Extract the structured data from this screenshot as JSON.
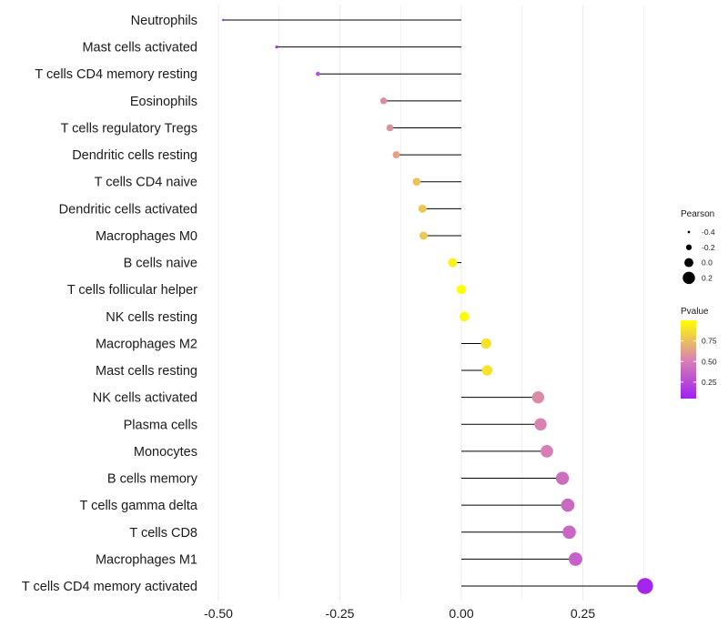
{
  "chart_data": {
    "type": "lollipop",
    "xlabel": "",
    "ylabel": "",
    "xlim": [
      -0.52,
      0.42
    ],
    "x_ticks": [
      -0.5,
      -0.25,
      0.0,
      0.25
    ],
    "x_tick_labels": [
      "-0.50",
      "-0.25",
      "0.00",
      "0.25"
    ],
    "categories": [
      "Neutrophils",
      "Mast cells activated",
      "T cells CD4 memory resting",
      "Eosinophils",
      "T cells regulatory  Tregs ",
      "Dendritic cells resting",
      "T cells CD4 naive",
      "Dendritic cells activated",
      "Macrophages M0",
      "B cells naive",
      "T cells follicular helper",
      "NK cells resting",
      "Macrophages M2",
      "Mast cells resting",
      "NK cells activated",
      "Plasma cells",
      "Monocytes",
      "B cells memory",
      "T cells gamma delta",
      "T cells CD8",
      "Macrophages M1",
      "T cells CD4 memory activated"
    ],
    "pearson": [
      -0.49,
      -0.38,
      -0.295,
      -0.16,
      -0.147,
      -0.134,
      -0.092,
      -0.08,
      -0.078,
      -0.018,
      0.0,
      0.006,
      0.051,
      0.053,
      0.158,
      0.163,
      0.176,
      0.208,
      0.219,
      0.222,
      0.235,
      0.378
    ],
    "pvalue": [
      0.05,
      0.12,
      0.28,
      0.55,
      0.58,
      0.64,
      0.76,
      0.78,
      0.79,
      0.95,
      1.0,
      0.99,
      0.89,
      0.89,
      0.55,
      0.53,
      0.5,
      0.42,
      0.4,
      0.39,
      0.36,
      0.08
    ],
    "legend_size": {
      "title": "Pearson",
      "values": [
        -0.4,
        -0.2,
        0.0,
        0.2
      ],
      "labels": [
        "-0.4",
        "-0.2",
        "0.0",
        "0.2"
      ]
    },
    "legend_color": {
      "title": "Pvalue",
      "range": [
        0.05,
        1.0
      ],
      "breaks": [
        0.25,
        0.5,
        0.75
      ],
      "labels": [
        "0.25",
        "0.50",
        "0.75"
      ],
      "low_color": "#a020f0",
      "mid_color": "#d983b2",
      "high_color": "#ffff00"
    },
    "grid_color": "#ebebeb",
    "stem_color": "#000000"
  }
}
